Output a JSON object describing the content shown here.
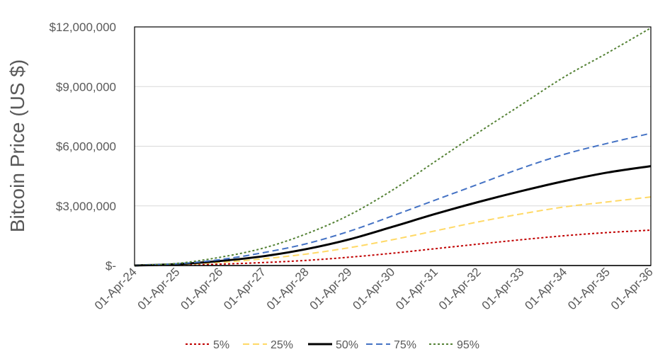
{
  "chart_data": {
    "type": "line",
    "title": "",
    "xlabel": "",
    "ylabel": "Bitcoin Price (US $)",
    "ylim": [
      0,
      12000000
    ],
    "y_ticks": [
      0,
      3000000,
      6000000,
      9000000,
      12000000
    ],
    "y_tick_labels": [
      "$-",
      "$3,000,000",
      "$6,000,000",
      "$9,000,000",
      "$12,000,000"
    ],
    "grid": true,
    "legend_position": "bottom",
    "x_labels": [
      "01-Apr-24",
      "01-Apr-25",
      "01-Apr-26",
      "01-Apr-27",
      "01-Apr-28",
      "01-Apr-29",
      "01-Apr-30",
      "01-Apr-31",
      "01-Apr-32",
      "01-Apr-33",
      "01-Apr-34",
      "01-Apr-35",
      "01-Apr-36"
    ],
    "x": [
      0,
      1,
      2,
      3,
      4,
      5,
      6,
      7,
      8,
      9,
      10,
      11,
      12
    ],
    "series": [
      {
        "name": "5%",
        "color": "#c00000",
        "dash": "dotted",
        "values": [
          0,
          25000,
          70000,
          150000,
          260000,
          420000,
          620000,
          850000,
          1080000,
          1300000,
          1500000,
          1660000,
          1780000
        ]
      },
      {
        "name": "25%",
        "color": "#ffd966",
        "dash": "dashed",
        "values": [
          0,
          45000,
          160000,
          340000,
          580000,
          900000,
          1300000,
          1750000,
          2200000,
          2600000,
          2950000,
          3200000,
          3450000
        ]
      },
      {
        "name": "50%",
        "color": "#000000",
        "dash": "solid",
        "values": [
          0,
          70000,
          230000,
          470000,
          830000,
          1320000,
          1950000,
          2600000,
          3200000,
          3750000,
          4250000,
          4680000,
          5000000
        ]
      },
      {
        "name": "75%",
        "color": "#4472c4",
        "dash": "dashed",
        "values": [
          0,
          90000,
          300000,
          650000,
          1100000,
          1730000,
          2500000,
          3300000,
          4100000,
          4900000,
          5600000,
          6150000,
          6650000
        ]
      },
      {
        "name": "95%",
        "color": "#548235",
        "dash": "dotted",
        "values": [
          0,
          110000,
          420000,
          880000,
          1600000,
          2550000,
          3800000,
          5250000,
          6700000,
          8100000,
          9500000,
          10700000,
          11950000
        ]
      }
    ]
  }
}
